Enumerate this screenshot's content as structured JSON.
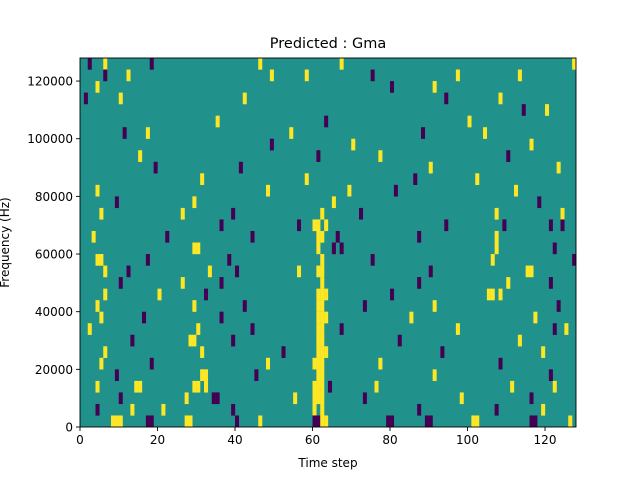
{
  "chart_data": {
    "type": "heatmap",
    "title": "Predicted : Gma",
    "xlabel": "Time step",
    "ylabel": "Frequency (Hz)",
    "xlim": [
      0,
      128
    ],
    "ylim": [
      0,
      128000
    ],
    "x_ticks": [
      0,
      20,
      40,
      60,
      80,
      100,
      120
    ],
    "x_tick_labels": [
      "0",
      "20",
      "40",
      "60",
      "80",
      "100",
      "120"
    ],
    "y_ticks": [
      0,
      20000,
      40000,
      60000,
      80000,
      100000,
      120000
    ],
    "y_tick_labels": [
      "0",
      "20000",
      "40000",
      "60000",
      "80000",
      "100000",
      "120000"
    ],
    "grid": false,
    "legend": "none",
    "value_levels": [
      -1,
      0,
      1
    ],
    "colormap": {
      "-1": "#440154",
      "0": "#21918c",
      "1": "#fde725"
    },
    "background_value": 0,
    "time_steps": 128,
    "frequency_bins": 32,
    "frequency_bin_width": 4000,
    "cells": [
      {
        "t": 2,
        "f": 31,
        "v": -1
      },
      {
        "t": 6,
        "f": 31,
        "v": 1
      },
      {
        "t": 18,
        "f": 31,
        "v": -1
      },
      {
        "t": 46,
        "f": 31,
        "v": 1
      },
      {
        "t": 67,
        "f": 31,
        "v": 1
      },
      {
        "t": 127,
        "f": 31,
        "v": 1
      },
      {
        "t": 6,
        "f": 30,
        "v": -1
      },
      {
        "t": 12,
        "f": 30,
        "v": 1
      },
      {
        "t": 49,
        "f": 30,
        "v": 1
      },
      {
        "t": 58,
        "f": 30,
        "v": 1
      },
      {
        "t": 75,
        "f": 30,
        "v": -1
      },
      {
        "t": 97,
        "f": 30,
        "v": 1
      },
      {
        "t": 113,
        "f": 30,
        "v": 1
      },
      {
        "t": 4,
        "f": 29,
        "v": 1
      },
      {
        "t": 80,
        "f": 29,
        "v": -1
      },
      {
        "t": 91,
        "f": 29,
        "v": 1
      },
      {
        "t": 1,
        "f": 28,
        "v": -1
      },
      {
        "t": 10,
        "f": 28,
        "v": 1
      },
      {
        "t": 42,
        "f": 28,
        "v": 1
      },
      {
        "t": 94,
        "f": 28,
        "v": -1
      },
      {
        "t": 108,
        "f": 28,
        "v": 1
      },
      {
        "t": 114,
        "f": 27,
        "v": -1
      },
      {
        "t": 120,
        "f": 27,
        "v": 1
      },
      {
        "t": 35,
        "f": 26,
        "v": 1
      },
      {
        "t": 63,
        "f": 26,
        "v": -1
      },
      {
        "t": 100,
        "f": 26,
        "v": 1
      },
      {
        "t": 11,
        "f": 25,
        "v": -1
      },
      {
        "t": 17,
        "f": 25,
        "v": 1
      },
      {
        "t": 54,
        "f": 25,
        "v": 1
      },
      {
        "t": 88,
        "f": 25,
        "v": -1
      },
      {
        "t": 104,
        "f": 25,
        "v": 1
      },
      {
        "t": 49,
        "f": 24,
        "v": -1
      },
      {
        "t": 70,
        "f": 24,
        "v": 1
      },
      {
        "t": 116,
        "f": 24,
        "v": 1
      },
      {
        "t": 15,
        "f": 23,
        "v": 1
      },
      {
        "t": 61,
        "f": 23,
        "v": -1
      },
      {
        "t": 77,
        "f": 23,
        "v": 1
      },
      {
        "t": 110,
        "f": 23,
        "v": -1
      },
      {
        "t": 19,
        "f": 22,
        "v": -1
      },
      {
        "t": 41,
        "f": 22,
        "v": -1
      },
      {
        "t": 90,
        "f": 22,
        "v": 1
      },
      {
        "t": 123,
        "f": 22,
        "v": 1
      },
      {
        "t": 31,
        "f": 21,
        "v": 1
      },
      {
        "t": 58,
        "f": 21,
        "v": 1
      },
      {
        "t": 86,
        "f": 21,
        "v": -1
      },
      {
        "t": 102,
        "f": 21,
        "v": 1
      },
      {
        "t": 4,
        "f": 20,
        "v": 1
      },
      {
        "t": 48,
        "f": 20,
        "v": 1
      },
      {
        "t": 69,
        "f": 20,
        "v": 1
      },
      {
        "t": 81,
        "f": 20,
        "v": -1
      },
      {
        "t": 112,
        "f": 20,
        "v": 1
      },
      {
        "t": 9,
        "f": 19,
        "v": -1
      },
      {
        "t": 29,
        "f": 19,
        "v": 1
      },
      {
        "t": 65,
        "f": 19,
        "v": 1
      },
      {
        "t": 118,
        "f": 19,
        "v": -1
      },
      {
        "t": 5,
        "f": 18,
        "v": 1
      },
      {
        "t": 26,
        "f": 18,
        "v": 1
      },
      {
        "t": 39,
        "f": 18,
        "v": -1
      },
      {
        "t": 62,
        "f": 18,
        "v": 1
      },
      {
        "t": 72,
        "f": 18,
        "v": -1
      },
      {
        "t": 107,
        "f": 18,
        "v": 1
      },
      {
        "t": 124,
        "f": 18,
        "v": 1
      },
      {
        "t": 36,
        "f": 17,
        "v": -1
      },
      {
        "t": 56,
        "f": 17,
        "v": -1
      },
      {
        "t": 60,
        "f": 17,
        "v": 1
      },
      {
        "t": 61,
        "f": 17,
        "v": 1
      },
      {
        "t": 63,
        "f": 17,
        "v": 1
      },
      {
        "t": 94,
        "f": 17,
        "v": -1
      },
      {
        "t": 109,
        "f": 17,
        "v": -1
      },
      {
        "t": 121,
        "f": 17,
        "v": -1
      },
      {
        "t": 124,
        "f": 17,
        "v": -1
      },
      {
        "t": 3,
        "f": 16,
        "v": 1
      },
      {
        "t": 22,
        "f": 16,
        "v": -1
      },
      {
        "t": 44,
        "f": 16,
        "v": -1
      },
      {
        "t": 61,
        "f": 16,
        "v": 1
      },
      {
        "t": 62,
        "f": 16,
        "v": 1
      },
      {
        "t": 66,
        "f": 16,
        "v": -1
      },
      {
        "t": 87,
        "f": 16,
        "v": -1
      },
      {
        "t": 107,
        "f": 16,
        "v": 1
      },
      {
        "t": 29,
        "f": 15,
        "v": 1
      },
      {
        "t": 30,
        "f": 15,
        "v": 1
      },
      {
        "t": 61,
        "f": 15,
        "v": 1
      },
      {
        "t": 65,
        "f": 15,
        "v": -1
      },
      {
        "t": 67,
        "f": 15,
        "v": -1
      },
      {
        "t": 107,
        "f": 15,
        "v": 1
      },
      {
        "t": 122,
        "f": 15,
        "v": -1
      },
      {
        "t": 4,
        "f": 14,
        "v": 1
      },
      {
        "t": 5,
        "f": 14,
        "v": 1
      },
      {
        "t": 17,
        "f": 14,
        "v": -1
      },
      {
        "t": 38,
        "f": 14,
        "v": -1
      },
      {
        "t": 62,
        "f": 14,
        "v": 1
      },
      {
        "t": 75,
        "f": 14,
        "v": -1
      },
      {
        "t": 106,
        "f": 14,
        "v": 1
      },
      {
        "t": 127,
        "f": 14,
        "v": -1
      },
      {
        "t": 6,
        "f": 13,
        "v": 1
      },
      {
        "t": 12,
        "f": 13,
        "v": -1
      },
      {
        "t": 33,
        "f": 13,
        "v": 1
      },
      {
        "t": 40,
        "f": 13,
        "v": -1
      },
      {
        "t": 56,
        "f": 13,
        "v": 1
      },
      {
        "t": 61,
        "f": 13,
        "v": 1
      },
      {
        "t": 62,
        "f": 13,
        "v": 1
      },
      {
        "t": 90,
        "f": 13,
        "v": -1
      },
      {
        "t": 115,
        "f": 13,
        "v": 1
      },
      {
        "t": 116,
        "f": 13,
        "v": 1
      },
      {
        "t": 10,
        "f": 12,
        "v": -1
      },
      {
        "t": 26,
        "f": 12,
        "v": 1
      },
      {
        "t": 36,
        "f": 12,
        "v": -1
      },
      {
        "t": 62,
        "f": 12,
        "v": 1
      },
      {
        "t": 87,
        "f": 12,
        "v": -1
      },
      {
        "t": 110,
        "f": 12,
        "v": 1
      },
      {
        "t": 121,
        "f": 12,
        "v": -1
      },
      {
        "t": 6,
        "f": 11,
        "v": 1
      },
      {
        "t": 20,
        "f": 11,
        "v": 1
      },
      {
        "t": 32,
        "f": 11,
        "v": -1
      },
      {
        "t": 61,
        "f": 11,
        "v": 1
      },
      {
        "t": 62,
        "f": 11,
        "v": 1
      },
      {
        "t": 63,
        "f": 11,
        "v": 1
      },
      {
        "t": 80,
        "f": 11,
        "v": -1
      },
      {
        "t": 105,
        "f": 11,
        "v": 1
      },
      {
        "t": 106,
        "f": 11,
        "v": 1
      },
      {
        "t": 108,
        "f": 11,
        "v": 1
      },
      {
        "t": 4,
        "f": 10,
        "v": 1
      },
      {
        "t": 29,
        "f": 10,
        "v": 1
      },
      {
        "t": 42,
        "f": 10,
        "v": -1
      },
      {
        "t": 61,
        "f": 10,
        "v": 1
      },
      {
        "t": 62,
        "f": 10,
        "v": 1
      },
      {
        "t": 73,
        "f": 10,
        "v": -1
      },
      {
        "t": 91,
        "f": 10,
        "v": 1
      },
      {
        "t": 123,
        "f": 10,
        "v": -1
      },
      {
        "t": 5,
        "f": 9,
        "v": 1
      },
      {
        "t": 16,
        "f": 9,
        "v": -1
      },
      {
        "t": 36,
        "f": 9,
        "v": -1
      },
      {
        "t": 61,
        "f": 9,
        "v": 1
      },
      {
        "t": 62,
        "f": 9,
        "v": 1
      },
      {
        "t": 63,
        "f": 9,
        "v": 1
      },
      {
        "t": 85,
        "f": 9,
        "v": 1
      },
      {
        "t": 117,
        "f": 9,
        "v": 1
      },
      {
        "t": 2,
        "f": 8,
        "v": 1
      },
      {
        "t": 30,
        "f": 8,
        "v": 1
      },
      {
        "t": 44,
        "f": 8,
        "v": -1
      },
      {
        "t": 61,
        "f": 8,
        "v": 1
      },
      {
        "t": 62,
        "f": 8,
        "v": 1
      },
      {
        "t": 67,
        "f": 8,
        "v": -1
      },
      {
        "t": 97,
        "f": 8,
        "v": 1
      },
      {
        "t": 122,
        "f": 8,
        "v": -1
      },
      {
        "t": 125,
        "f": 8,
        "v": 1
      },
      {
        "t": 13,
        "f": 7,
        "v": -1
      },
      {
        "t": 28,
        "f": 7,
        "v": 1
      },
      {
        "t": 29,
        "f": 7,
        "v": 1
      },
      {
        "t": 39,
        "f": 7,
        "v": -1
      },
      {
        "t": 61,
        "f": 7,
        "v": 1
      },
      {
        "t": 62,
        "f": 7,
        "v": 1
      },
      {
        "t": 82,
        "f": 7,
        "v": -1
      },
      {
        "t": 113,
        "f": 7,
        "v": 1
      },
      {
        "t": 6,
        "f": 6,
        "v": 1
      },
      {
        "t": 31,
        "f": 6,
        "v": 1
      },
      {
        "t": 52,
        "f": 6,
        "v": -1
      },
      {
        "t": 61,
        "f": 6,
        "v": 1
      },
      {
        "t": 62,
        "f": 6,
        "v": 1
      },
      {
        "t": 63,
        "f": 6,
        "v": 1
      },
      {
        "t": 93,
        "f": 6,
        "v": -1
      },
      {
        "t": 119,
        "f": 6,
        "v": 1
      },
      {
        "t": 5,
        "f": 5,
        "v": 1
      },
      {
        "t": 18,
        "f": 5,
        "v": -1
      },
      {
        "t": 48,
        "f": 5,
        "v": 1
      },
      {
        "t": 60,
        "f": 5,
        "v": 1
      },
      {
        "t": 61,
        "f": 5,
        "v": 1
      },
      {
        "t": 62,
        "f": 5,
        "v": 1
      },
      {
        "t": 77,
        "f": 5,
        "v": 1
      },
      {
        "t": 108,
        "f": 5,
        "v": -1
      },
      {
        "t": 9,
        "f": 4,
        "v": -1
      },
      {
        "t": 31,
        "f": 4,
        "v": 1
      },
      {
        "t": 32,
        "f": 4,
        "v": 1
      },
      {
        "t": 45,
        "f": 4,
        "v": -1
      },
      {
        "t": 61,
        "f": 4,
        "v": 1
      },
      {
        "t": 62,
        "f": 4,
        "v": 1
      },
      {
        "t": 91,
        "f": 4,
        "v": 1
      },
      {
        "t": 121,
        "f": 4,
        "v": -1
      },
      {
        "t": 4,
        "f": 3,
        "v": 1
      },
      {
        "t": 14,
        "f": 3,
        "v": 1
      },
      {
        "t": 15,
        "f": 3,
        "v": 1
      },
      {
        "t": 29,
        "f": 3,
        "v": 1
      },
      {
        "t": 30,
        "f": 3,
        "v": 1
      },
      {
        "t": 32,
        "f": 3,
        "v": 1
      },
      {
        "t": 60,
        "f": 3,
        "v": 1
      },
      {
        "t": 61,
        "f": 3,
        "v": 1
      },
      {
        "t": 62,
        "f": 3,
        "v": 1
      },
      {
        "t": 64,
        "f": 3,
        "v": -1
      },
      {
        "t": 76,
        "f": 3,
        "v": 1
      },
      {
        "t": 111,
        "f": 3,
        "v": 1
      },
      {
        "t": 122,
        "f": 3,
        "v": 1
      },
      {
        "t": 10,
        "f": 2,
        "v": -1
      },
      {
        "t": 27,
        "f": 2,
        "v": 1
      },
      {
        "t": 34,
        "f": 2,
        "v": -1
      },
      {
        "t": 35,
        "f": 2,
        "v": -1
      },
      {
        "t": 55,
        "f": 2,
        "v": 1
      },
      {
        "t": 60,
        "f": 2,
        "v": 1
      },
      {
        "t": 61,
        "f": 2,
        "v": 1
      },
      {
        "t": 62,
        "f": 2,
        "v": 1
      },
      {
        "t": 73,
        "f": 2,
        "v": -1
      },
      {
        "t": 98,
        "f": 2,
        "v": 1
      },
      {
        "t": 116,
        "f": 2,
        "v": -1
      },
      {
        "t": 4,
        "f": 1,
        "v": -1
      },
      {
        "t": 13,
        "f": 1,
        "v": 1
      },
      {
        "t": 21,
        "f": 1,
        "v": 1
      },
      {
        "t": 39,
        "f": 1,
        "v": -1
      },
      {
        "t": 60,
        "f": 1,
        "v": 1
      },
      {
        "t": 62,
        "f": 1,
        "v": 1
      },
      {
        "t": 87,
        "f": 1,
        "v": -1
      },
      {
        "t": 107,
        "f": 1,
        "v": -1
      },
      {
        "t": 119,
        "f": 1,
        "v": 1
      },
      {
        "t": 8,
        "f": 0,
        "v": 1
      },
      {
        "t": 9,
        "f": 0,
        "v": 1
      },
      {
        "t": 10,
        "f": 0,
        "v": 1
      },
      {
        "t": 17,
        "f": 0,
        "v": -1
      },
      {
        "t": 18,
        "f": 0,
        "v": -1
      },
      {
        "t": 27,
        "f": 0,
        "v": 1
      },
      {
        "t": 28,
        "f": 0,
        "v": 1
      },
      {
        "t": 40,
        "f": 0,
        "v": -1
      },
      {
        "t": 46,
        "f": 0,
        "v": 1
      },
      {
        "t": 60,
        "f": 0,
        "v": -1
      },
      {
        "t": 61,
        "f": 0,
        "v": -1
      },
      {
        "t": 62,
        "f": 0,
        "v": 1
      },
      {
        "t": 63,
        "f": 0,
        "v": 1
      },
      {
        "t": 79,
        "f": 0,
        "v": -1
      },
      {
        "t": 80,
        "f": 0,
        "v": -1
      },
      {
        "t": 89,
        "f": 0,
        "v": -1
      },
      {
        "t": 90,
        "f": 0,
        "v": -1
      },
      {
        "t": 101,
        "f": 0,
        "v": 1
      },
      {
        "t": 102,
        "f": 0,
        "v": 1
      },
      {
        "t": 116,
        "f": 0,
        "v": -1
      },
      {
        "t": 117,
        "f": 0,
        "v": -1
      },
      {
        "t": 126,
        "f": 0,
        "v": 1
      }
    ]
  }
}
